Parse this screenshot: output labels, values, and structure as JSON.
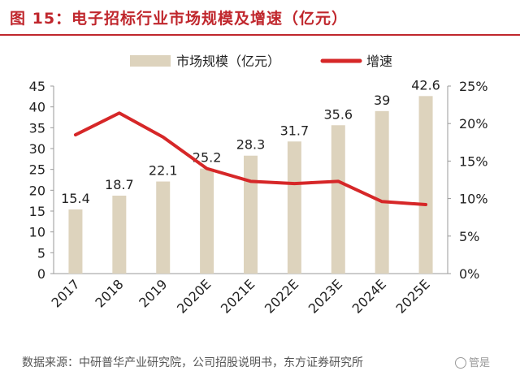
{
  "header": {
    "title": "图 15：电子招标行业市场规模及增速（亿元）"
  },
  "footer": {
    "source": "数据来源：中研普华产业研究院，公司招股说明书，东方证券研究所",
    "watermark": "管是"
  },
  "colors": {
    "bar": "#ddd3bd",
    "line": "#d62728",
    "title": "#c0272d",
    "axis": "#999999",
    "text": "#222222"
  },
  "chart_data": {
    "type": "bar",
    "title": "电子招标行业市场规模及增速（亿元）",
    "categories": [
      "2017",
      "2018",
      "2019",
      "2020E",
      "2021E",
      "2022E",
      "2023E",
      "2024E",
      "2025E"
    ],
    "series": [
      {
        "name": "市场规模（亿元）",
        "type": "bar",
        "axis": "left",
        "values": [
          15.4,
          18.7,
          22.1,
          25.2,
          28.3,
          31.7,
          35.6,
          39,
          42.6
        ],
        "labels": [
          "15.4",
          "18.7",
          "22.1",
          "25.2",
          "28.3",
          "31.7",
          "35.6",
          "39",
          "42.6"
        ]
      },
      {
        "name": "增速",
        "type": "line",
        "axis": "right",
        "values": [
          18.5,
          21.4,
          18.2,
          14.0,
          12.3,
          12.0,
          12.3,
          9.6,
          9.2
        ]
      }
    ],
    "y_left": {
      "range": [
        0,
        45
      ],
      "ticks": [
        "0",
        "5",
        "10",
        "15",
        "20",
        "25",
        "30",
        "35",
        "40",
        "45"
      ]
    },
    "y_right": {
      "range": [
        0,
        25
      ],
      "ticks": [
        "0%",
        "5%",
        "10%",
        "15%",
        "20%",
        "25%"
      ]
    },
    "legend": {
      "position": "top-center",
      "items": [
        "市场规模（亿元）",
        "增速"
      ]
    },
    "grid": false
  }
}
